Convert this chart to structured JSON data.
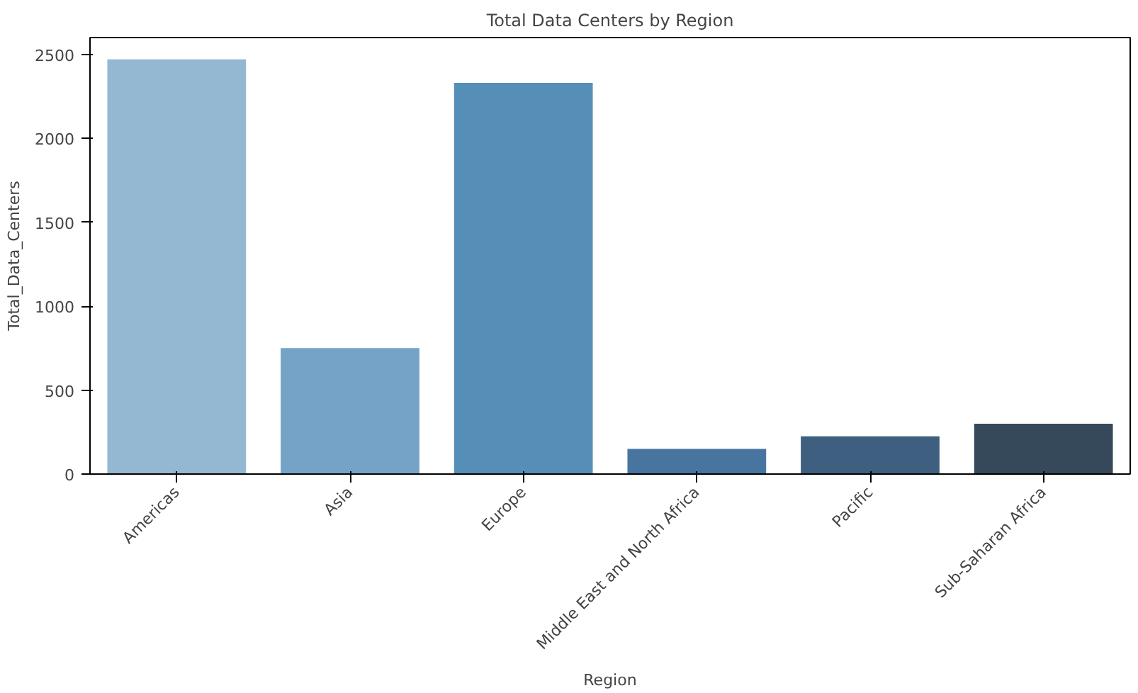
{
  "chart_data": {
    "type": "bar",
    "title": "Total Data Centers by Region",
    "xlabel": "Region",
    "ylabel": "Total_Data_Centers",
    "categories": [
      "Americas",
      "Asia",
      "Europe",
      "Middle East and North Africa",
      "Pacific",
      "Sub-Saharan Africa"
    ],
    "values": [
      2470,
      750,
      2330,
      150,
      225,
      300
    ],
    "colors": [
      "#94b8d2",
      "#74a3c7",
      "#558fb8",
      "#4775a0",
      "#3e5f80",
      "#36495a"
    ],
    "ylim": [
      0,
      2600
    ],
    "yticks": [
      0,
      500,
      1000,
      1500,
      2000,
      2500
    ],
    "grid": false
  }
}
